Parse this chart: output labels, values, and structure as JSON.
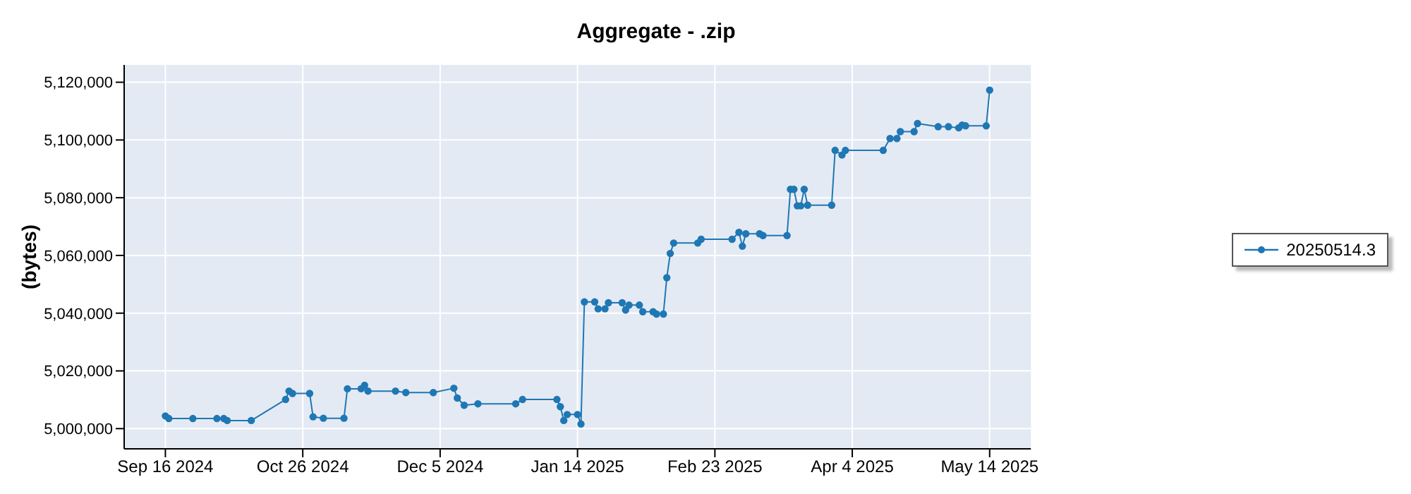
{
  "chart_data": {
    "type": "line",
    "title": "Aggregate - .zip",
    "ylabel": "(bytes)",
    "x": [
      "2024-09-16",
      "2024-09-17",
      "2024-09-24",
      "2024-10-01",
      "2024-10-03",
      "2024-10-04",
      "2024-10-11",
      "2024-10-21",
      "2024-10-22",
      "2024-10-23",
      "2024-10-28",
      "2024-10-29",
      "2024-11-01",
      "2024-11-07",
      "2024-11-08",
      "2024-11-12",
      "2024-11-13",
      "2024-11-14",
      "2024-11-22",
      "2024-11-25",
      "2024-12-03",
      "2024-12-09",
      "2024-12-10",
      "2024-12-12",
      "2024-12-16",
      "2024-12-27",
      "2024-12-29",
      "2025-01-08",
      "2025-01-09",
      "2025-01-10",
      "2025-01-11",
      "2025-01-14",
      "2025-01-15",
      "2025-01-16",
      "2025-01-19",
      "2025-01-20",
      "2025-01-22",
      "2025-01-23",
      "2025-01-27",
      "2025-01-28",
      "2025-01-29",
      "2025-02-01",
      "2025-02-02",
      "2025-02-05",
      "2025-02-06",
      "2025-02-08",
      "2025-02-09",
      "2025-02-10",
      "2025-02-11",
      "2025-02-18",
      "2025-02-19",
      "2025-02-28",
      "2025-03-02",
      "2025-03-03",
      "2025-03-04",
      "2025-03-08",
      "2025-03-09",
      "2025-03-16",
      "2025-03-17",
      "2025-03-18",
      "2025-03-19",
      "2025-03-20",
      "2025-03-21",
      "2025-03-22",
      "2025-03-29",
      "2025-03-30",
      "2025-04-01",
      "2025-04-02",
      "2025-04-13",
      "2025-04-15",
      "2025-04-17",
      "2025-04-18",
      "2025-04-22",
      "2025-04-23",
      "2025-04-29",
      "2025-05-02",
      "2025-05-05",
      "2025-05-06",
      "2025-05-07",
      "2025-05-13",
      "2025-05-14"
    ],
    "series": [
      {
        "name": "20250514.3",
        "color": "#1f77b4",
        "values": [
          5004400,
          5003500,
          5003500,
          5003500,
          5003500,
          5002800,
          5002800,
          5010100,
          5013000,
          5012200,
          5012200,
          5004100,
          5003600,
          5003600,
          5013800,
          5013800,
          5015000,
          5013000,
          5013000,
          5012500,
          5012500,
          5014000,
          5010600,
          5008100,
          5008600,
          5008600,
          5010100,
          5010100,
          5007600,
          5002800,
          5004900,
          5004900,
          5001600,
          5043900,
          5043900,
          5041500,
          5041500,
          5043600,
          5043600,
          5041100,
          5042800,
          5042800,
          5040500,
          5040500,
          5039700,
          5039700,
          5052300,
          5060700,
          5064300,
          5064300,
          5065600,
          5065600,
          5068000,
          5063200,
          5067500,
          5067500,
          5066900,
          5066900,
          5082900,
          5082900,
          5077200,
          5077200,
          5082900,
          5077400,
          5077400,
          5096400,
          5094800,
          5096400,
          5096400,
          5100500,
          5100500,
          5102900,
          5102900,
          5105700,
          5104600,
          5104600,
          5104200,
          5105200,
          5104900,
          5104900,
          5117300
        ]
      }
    ],
    "xlim": [
      "2024-09-04",
      "2025-05-26"
    ],
    "xticks": [
      {
        "value": "2024-09-16",
        "label": "Sep 16 2024"
      },
      {
        "value": "2024-10-26",
        "label": "Oct 26 2024"
      },
      {
        "value": "2024-12-05",
        "label": "Dec 5 2024"
      },
      {
        "value": "2025-01-14",
        "label": "Jan 14 2025"
      },
      {
        "value": "2025-02-23",
        "label": "Feb 23 2025"
      },
      {
        "value": "2025-04-04",
        "label": "Apr 4 2025"
      },
      {
        "value": "2025-05-14",
        "label": "May 14 2025"
      }
    ],
    "ylim": [
      4993000,
      5126000
    ],
    "yticks": [
      {
        "value": 5000000,
        "label": "5,000,000"
      },
      {
        "value": 5020000,
        "label": "5,020,000"
      },
      {
        "value": 5040000,
        "label": "5,040,000"
      },
      {
        "value": 5060000,
        "label": "5,060,000"
      },
      {
        "value": 5080000,
        "label": "5,080,000"
      },
      {
        "value": 5100000,
        "label": "5,100,000"
      },
      {
        "value": 5120000,
        "label": "5,120,000"
      }
    ],
    "grid": true,
    "legend": "right",
    "marker": "circle",
    "line_style": "solid"
  }
}
